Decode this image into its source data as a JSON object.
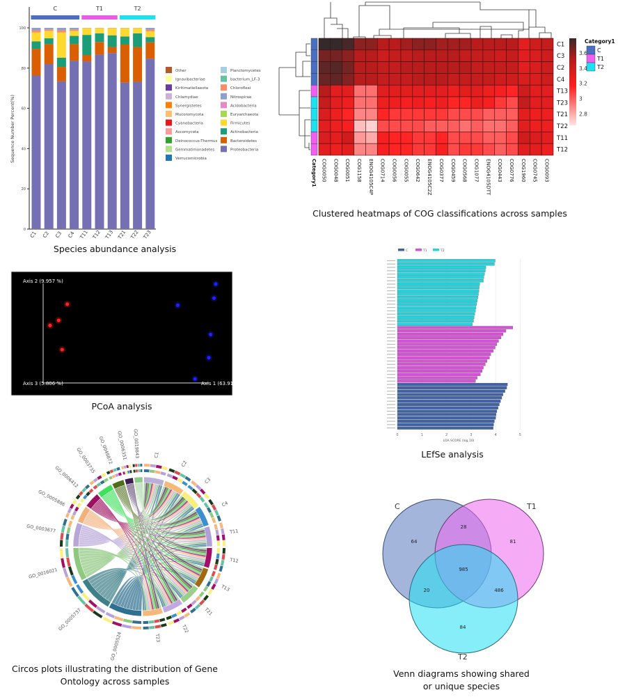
{
  "captions": {
    "species": "Species abundance analysis",
    "heatmap": "Clustered heatmaps of COG classifications across samples",
    "pcoa": "PCoA analysis",
    "lefse": "LEfSe analysis",
    "circos_line1": "Circos plots illustrating the distribution of Gene",
    "circos_line2": "Ontology across samples",
    "venn_line1": "Venn diagrams showing shared",
    "venn_line2": "or unique species"
  },
  "chart_data": [
    {
      "type": "bar",
      "stacked": true,
      "ylabel": "Sequence Number Percent(%)",
      "ylim": [
        0,
        100
      ],
      "yticks": [
        "0",
        "20",
        "40",
        "60",
        "80",
        "100"
      ],
      "categories": [
        "C1",
        "C2",
        "C3",
        "C4",
        "T11",
        "T12",
        "T13",
        "T21",
        "T22",
        "T23"
      ],
      "groups": [
        {
          "name": "C",
          "color": "#4a6fc0",
          "members": [
            "C1",
            "C2",
            "C3",
            "C4"
          ]
        },
        {
          "name": "T1",
          "color": "#e85ce8",
          "members": [
            "T11",
            "T12",
            "T13"
          ]
        },
        {
          "name": "T2",
          "color": "#1fe0f0",
          "members": [
            "T21",
            "T22",
            "T23"
          ]
        }
      ],
      "series": [
        {
          "name": "Proteobacteria",
          "color": "#7570b3",
          "values": [
            76.3,
            82.0,
            73.4,
            83.6,
            83.2,
            86.7,
            87.5,
            72.8,
            73.2,
            84.7
          ]
        },
        {
          "name": "Bacteroidetes",
          "color": "#d95f02",
          "values": [
            13.3,
            9.9,
            7.2,
            8.3,
            3.3,
            6.3,
            3.0,
            18.9,
            17.3,
            8.1
          ]
        },
        {
          "name": "Actinobacteria",
          "color": "#1b9e77",
          "values": [
            3.7,
            2.9,
            4.6,
            4.1,
            10.0,
            4.3,
            5.8,
            4.0,
            6.8,
            2.6
          ]
        },
        {
          "name": "Firmicutes",
          "color": "#ffd92f",
          "values": [
            4.4,
            3.7,
            12.5,
            2.5,
            3.3,
            2.5,
            3.5,
            4.1,
            2.5,
            2.9
          ]
        },
        {
          "name": "Chloroflexi",
          "color": "#fc8d62",
          "values": [
            1.1,
            0.7,
            1.1,
            0.7,
            0.1,
            0.1,
            0.1,
            0.1,
            0.1,
            0.8
          ]
        },
        {
          "name": "Nitrospirae",
          "color": "#8da0cb",
          "values": [
            1.2,
            0.8,
            1.2,
            0.8,
            0.1,
            0.1,
            0.1,
            0.1,
            0.1,
            0.9
          ]
        }
      ],
      "legend": [
        {
          "name": "Other",
          "color": "#b35a2a"
        },
        {
          "name": "Ignavibacteriae",
          "color": "#ffff99"
        },
        {
          "name": "Kiritimatiellaeota",
          "color": "#6a3d9a"
        },
        {
          "name": "Chlamydiae",
          "color": "#cab2d6"
        },
        {
          "name": "Synergistetes",
          "color": "#ff7f00"
        },
        {
          "name": "Mucoromycota",
          "color": "#fdbf6f"
        },
        {
          "name": "Cyanobacteria",
          "color": "#e31a1c"
        },
        {
          "name": "Ascomycota",
          "color": "#fb9a99"
        },
        {
          "name": "Deinococcus-Thermus",
          "color": "#33a02c"
        },
        {
          "name": "Gemmatimonadetes",
          "color": "#b2df8a"
        },
        {
          "name": "Verrucomicrobia",
          "color": "#1f78b4"
        },
        {
          "name": "Planctomycetes",
          "color": "#a6cee3"
        },
        {
          "name": "bacterium_LF-3",
          "color": "#66c2a5"
        },
        {
          "name": "Chloroflexi",
          "color": "#fc8d62"
        },
        {
          "name": "Nitrospirae",
          "color": "#8da0cb"
        },
        {
          "name": "Acidobacteria",
          "color": "#e78ac3"
        },
        {
          "name": "Euryarchaeota",
          "color": "#a6d854"
        },
        {
          "name": "Firmicutes",
          "color": "#ffd92f"
        },
        {
          "name": "Actinobacteria",
          "color": "#1b9e77"
        },
        {
          "name": "Bacteroidetes",
          "color": "#d95f02"
        },
        {
          "name": "Proteobacteria",
          "color": "#7570b3"
        }
      ],
      "grid": false
    },
    {
      "type": "heatmap",
      "rows": [
        "C1",
        "C3",
        "C2",
        "C4",
        "T13",
        "T23",
        "T21",
        "T22",
        "T11",
        "T12"
      ],
      "row_category": [
        "C",
        "C",
        "C",
        "C",
        "T1",
        "T2",
        "T2",
        "T2",
        "T1",
        "T1"
      ],
      "columns": [
        "COG0050",
        "COG0048",
        "COG0051",
        "COG1158",
        "ENOG4105C4P",
        "COG0714",
        "COG0056",
        "COG0055",
        "COG0642",
        "ENOG4105C2Z",
        "COG0377",
        "COG0459",
        "COG0568",
        "COG1077",
        "ENOG4105DTT",
        "COG0443",
        "COG0776",
        "COG1960",
        "COG0745",
        "COG0093"
      ],
      "values": [
        [
          3.8,
          3.8,
          3.75,
          3.6,
          3.6,
          3.5,
          3.5,
          3.55,
          3.6,
          3.6,
          3.55,
          3.55,
          3.55,
          3.5,
          3.5,
          3.5,
          3.5,
          3.3,
          3.4,
          3.45
        ],
        [
          3.65,
          3.65,
          3.6,
          3.5,
          3.5,
          3.4,
          3.45,
          3.45,
          3.5,
          3.5,
          3.5,
          3.5,
          3.45,
          3.45,
          3.45,
          3.4,
          3.45,
          3.3,
          3.35,
          3.4
        ],
        [
          3.7,
          3.72,
          3.65,
          3.5,
          3.5,
          3.45,
          3.45,
          3.5,
          3.5,
          3.5,
          3.5,
          3.5,
          3.5,
          3.45,
          3.45,
          3.45,
          3.45,
          3.3,
          3.35,
          3.4
        ],
        [
          3.68,
          3.7,
          3.62,
          3.5,
          3.5,
          3.45,
          3.45,
          3.45,
          3.5,
          3.5,
          3.5,
          3.45,
          3.45,
          3.45,
          3.45,
          3.4,
          3.4,
          3.35,
          3.35,
          3.4
        ],
        [
          3.5,
          3.3,
          3.3,
          2.95,
          2.95,
          3.3,
          3.3,
          3.3,
          3.3,
          3.3,
          3.3,
          3.25,
          3.3,
          3.3,
          3.25,
          3.2,
          3.15,
          3.4,
          3.3,
          3.3
        ],
        [
          3.45,
          3.3,
          3.25,
          2.95,
          2.95,
          3.25,
          3.25,
          3.2,
          3.25,
          3.2,
          3.25,
          3.15,
          3.15,
          3.25,
          3.2,
          3.1,
          3.05,
          3.45,
          3.3,
          3.3
        ],
        [
          3.35,
          3.25,
          3.15,
          2.9,
          2.9,
          3.15,
          3.1,
          3.1,
          3.1,
          3.1,
          3.1,
          3.05,
          3.05,
          3.05,
          3.0,
          3.0,
          3.0,
          3.3,
          3.25,
          3.25
        ],
        [
          3.3,
          3.25,
          3.2,
          2.75,
          2.7,
          3.05,
          3.05,
          3.05,
          3.05,
          3.0,
          3.0,
          3.0,
          2.95,
          3.0,
          2.95,
          2.95,
          3.0,
          3.3,
          3.25,
          3.25
        ],
        [
          3.35,
          3.3,
          3.4,
          2.85,
          2.8,
          3.2,
          3.15,
          3.15,
          3.1,
          3.1,
          3.15,
          3.05,
          3.05,
          3.05,
          3.0,
          3.0,
          3.05,
          3.4,
          3.35,
          3.3
        ],
        [
          3.3,
          3.25,
          3.3,
          2.9,
          2.9,
          3.2,
          3.15,
          3.15,
          3.1,
          3.1,
          3.2,
          3.05,
          3.1,
          3.1,
          3.05,
          3.0,
          3.05,
          3.3,
          3.3,
          3.25
        ]
      ],
      "category_label": "Category1",
      "legend_title": "Category1",
      "categories": [
        {
          "name": "C",
          "color": "#4a6fc0"
        },
        {
          "name": "T1",
          "color": "#f060f0"
        },
        {
          "name": "T2",
          "color": "#1fe0f0"
        }
      ],
      "colorbar_ticks": [
        "3.6",
        "3.4",
        "3.2",
        "3",
        "2.8"
      ],
      "colorbar_range": [
        2.65,
        3.79
      ],
      "color_scale": [
        "#ffe4e4",
        "#ff2020",
        "#b81c1c",
        "#352a2a"
      ]
    },
    {
      "type": "scatter",
      "background": "#000000",
      "axis_labels": {
        "axis2": "Axis 2 (9.957 %)",
        "axis3": "Axis 3 (5.806 %)",
        "axis1": "Axis 1 (63.91 %)"
      },
      "series": [
        {
          "color": "#ff2020",
          "points": [
            [
              0.14,
              0.78
            ],
            [
              0.09,
              0.62
            ],
            [
              0.04,
              0.57
            ],
            [
              0.11,
              0.33
            ]
          ]
        },
        {
          "color": "#2020ff",
          "points": [
            [
              1.0,
              0.98
            ],
            [
              0.99,
              0.84
            ],
            [
              0.78,
              0.77
            ],
            [
              0.97,
              0.48
            ],
            [
              0.96,
              0.25
            ],
            [
              0.88,
              0.04
            ]
          ]
        }
      ]
    },
    {
      "type": "bar",
      "orientation": "horizontal",
      "xlabel": "LDA SCORE (log 10)",
      "xlim": [
        0,
        5
      ],
      "xticks": [
        "0",
        "1",
        "2",
        "3",
        "4",
        "5"
      ],
      "legend": [
        {
          "name": "C",
          "color": "#3f63a6"
        },
        {
          "name": "T1",
          "color": "#d94fd9"
        },
        {
          "name": "T2",
          "color": "#1fd6e0"
        }
      ],
      "series": [
        {
          "name": "T2",
          "color": "#1fd6e0",
          "values": [
            3.98,
            3.95,
            3.6,
            3.58,
            3.55,
            3.52,
            3.5,
            3.35,
            3.33,
            3.32,
            3.3,
            3.28,
            3.25,
            3.22,
            3.2,
            3.18,
            3.15,
            3.12,
            3.1,
            3.05
          ]
        },
        {
          "name": "T1",
          "color": "#d94fd9",
          "values": [
            4.7,
            4.42,
            4.3,
            4.22,
            4.12,
            4.05,
            3.98,
            3.9,
            3.8,
            3.75,
            3.65,
            3.58,
            3.5,
            3.45,
            3.38,
            3.25,
            3.18
          ]
        },
        {
          "name": "C",
          "color": "#3f63a6",
          "values": [
            4.48,
            4.45,
            4.38,
            4.3,
            4.25,
            4.2,
            4.15,
            4.1,
            4.05,
            4.02,
            4.0,
            3.95,
            3.92,
            3.9
          ]
        }
      ]
    },
    {
      "type": "chord",
      "go_terms": [
        {
          "name": "GO_0019843",
          "color": "#8cc98a",
          "relative_size": 7
        },
        {
          "name": "GO_0006351",
          "color": "#3b1f4f",
          "relative_size": 7
        },
        {
          "name": "GO_0046872",
          "color": "#4f6e1c",
          "relative_size": 10
        },
        {
          "name": "GO_0003735",
          "color": "#3fe05a",
          "relative_size": 13
        },
        {
          "name": "GO_0006412",
          "color": "#9c1060",
          "relative_size": 13
        },
        {
          "name": "GO_0005886",
          "color": "#f2b07a",
          "relative_size": 14
        },
        {
          "name": "GO_0003677",
          "color": "#b9a6d8",
          "relative_size": 20
        },
        {
          "name": "GO_0016021",
          "color": "#8fc87f",
          "relative_size": 28
        },
        {
          "name": "GO_0005737",
          "color": "#3e7f88",
          "relative_size": 30
        },
        {
          "name": "GO_0005524",
          "color": "#2f6f8f",
          "relative_size": 28
        }
      ],
      "samples": [
        {
          "name": "C1",
          "color": "#b8b0d8"
        },
        {
          "name": "C2",
          "color": "#f5b878"
        },
        {
          "name": "C3",
          "color": "#f7f07a"
        },
        {
          "name": "C4",
          "color": "#3b8fd0"
        },
        {
          "name": "T11",
          "color": "#b0a0d8"
        },
        {
          "name": "T12",
          "color": "#a0106a"
        },
        {
          "name": "T13",
          "color": "#a06a10"
        },
        {
          "name": "T21",
          "color": "#9ad08a"
        },
        {
          "name": "T22",
          "color": "#c0a8e0"
        },
        {
          "name": "T23",
          "color": "#f5b878"
        }
      ]
    },
    {
      "type": "venn",
      "sets": [
        {
          "name": "C",
          "color": "#5a78c0"
        },
        {
          "name": "T1",
          "color": "#ee66ee"
        },
        {
          "name": "T2",
          "color": "#22e0f2"
        }
      ],
      "regions": {
        "C_only": "64",
        "T1_only": "81",
        "T2_only": "84",
        "C_T1": "28",
        "C_T2": "20",
        "T1_T2": "486",
        "C_T1_T2": "985"
      }
    }
  ]
}
